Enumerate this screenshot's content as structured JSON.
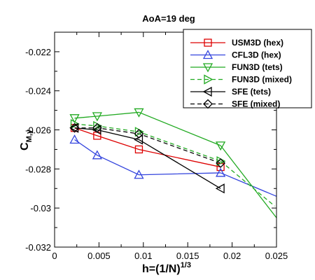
{
  "chart_data": {
    "type": "line",
    "title": "AoA=19 deg",
    "xlabel": "h=(1/N)",
    "xlabel_sup": "1/3",
    "ylabel": "C",
    "ylabel_sub": "M,y",
    "xlim": [
      0,
      0.025
    ],
    "ylim": [
      -0.032,
      -0.021
    ],
    "xticks": [
      0,
      0.005,
      0.01,
      0.015,
      0.02,
      0.025
    ],
    "xtick_labels": [
      "0",
      "0.005",
      "0.01",
      "0.015",
      "0.02",
      "0.025"
    ],
    "yticks": [
      -0.032,
      -0.03,
      -0.028,
      -0.026,
      -0.024,
      -0.022
    ],
    "ytick_labels": [
      "-0.032",
      "-0.03",
      "-0.028",
      "-0.026",
      "-0.024",
      "-0.022"
    ],
    "grid": false,
    "legend_position": "top-right",
    "series": [
      {
        "name": "USM3D (hex)",
        "color": "#dd0000",
        "marker": "square",
        "dash": "solid",
        "x": [
          0.00225,
          0.0048,
          0.0095,
          0.0187
        ],
        "y": [
          -0.0259,
          -0.0263,
          -0.027,
          -0.0279
        ],
        "extrap": null
      },
      {
        "name": "CFL3D (hex)",
        "color": "#3344dd",
        "marker": "triangle-up",
        "dash": "solid",
        "x": [
          0.00225,
          0.0048,
          0.0095,
          0.0187
        ],
        "y": [
          -0.0265,
          -0.0273,
          -0.0283,
          -0.0282
        ],
        "extrap": [
          0.025,
          -0.0294
        ]
      },
      {
        "name": "FUN3D (tets)",
        "color": "#22aa22",
        "marker": "triangle-down",
        "dash": "solid",
        "x": [
          0.00225,
          0.0048,
          0.0095,
          0.0187
        ],
        "y": [
          -0.0254,
          -0.0253,
          -0.0251,
          -0.0268
        ],
        "extrap": [
          0.025,
          -0.0305
        ]
      },
      {
        "name": "FUN3D (mixed)",
        "color": "#22aa22",
        "marker": "triangle-right",
        "dash": "dashed",
        "x": [
          0.00225,
          0.0048,
          0.0095,
          0.0187
        ],
        "y": [
          -0.0257,
          -0.0258,
          -0.0261,
          -0.0276
        ],
        "extrap": [
          0.0248,
          -0.0299
        ]
      },
      {
        "name": "SFE (tets)",
        "color": "#000000",
        "marker": "triangle-left",
        "dash": "solid",
        "x": [
          0.00225,
          0.0048,
          0.0095,
          0.0187
        ],
        "y": [
          -0.0259,
          -0.026,
          -0.0265,
          -0.029
        ],
        "extrap": null
      },
      {
        "name": "SFE (mixed)",
        "color": "#000000",
        "marker": "diamond",
        "dash": "dashed",
        "x": [
          0.00225,
          0.0048,
          0.0095,
          0.0187
        ],
        "y": [
          -0.0259,
          -0.0259,
          -0.0262,
          -0.0277
        ],
        "extrap": null
      }
    ]
  }
}
